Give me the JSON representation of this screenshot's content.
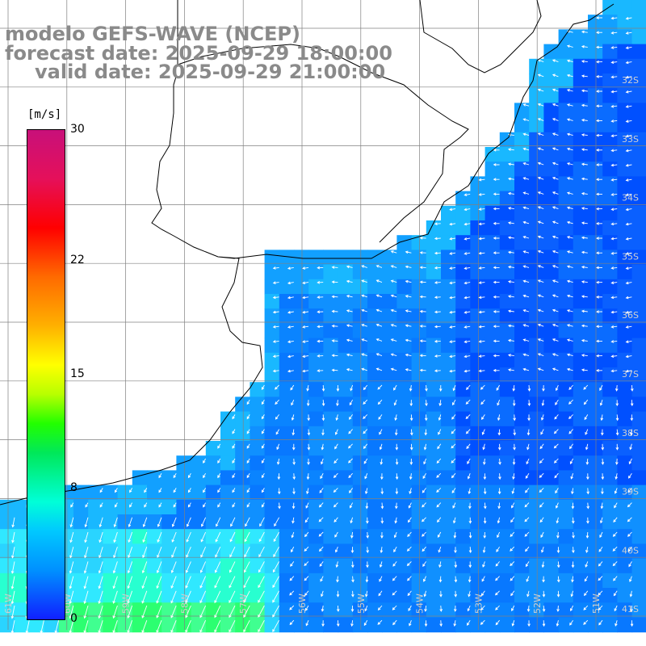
{
  "title": {
    "line1": "modelo GEFS-WAVE (NCEP)",
    "line2": "forecast date: 2025-09-29 18:00:00",
    "line3": "valid date: 2025-09-29 21:00:00"
  },
  "colorbar": {
    "units": "[m/s]",
    "ticks": [
      {
        "value": 30,
        "label": "30"
      },
      {
        "value": 22,
        "label": "22"
      },
      {
        "value": 15,
        "label": "15"
      },
      {
        "value": 8,
        "label": "8"
      },
      {
        "value": 0,
        "label": "0"
      }
    ],
    "max": 30
  },
  "lat_labels": [
    "32S",
    "33S",
    "34S",
    "35S",
    "36S",
    "37S",
    "38S",
    "39S",
    "40S",
    "41S"
  ],
  "lon_labels": [
    "61W",
    "60W",
    "59W",
    "58W",
    "57W",
    "56W",
    "55W",
    "54W",
    "53W",
    "52W",
    "51W"
  ],
  "colors": {
    "land": "#ffffff",
    "grid": "#808080",
    "title": "#8a8a8a"
  }
}
